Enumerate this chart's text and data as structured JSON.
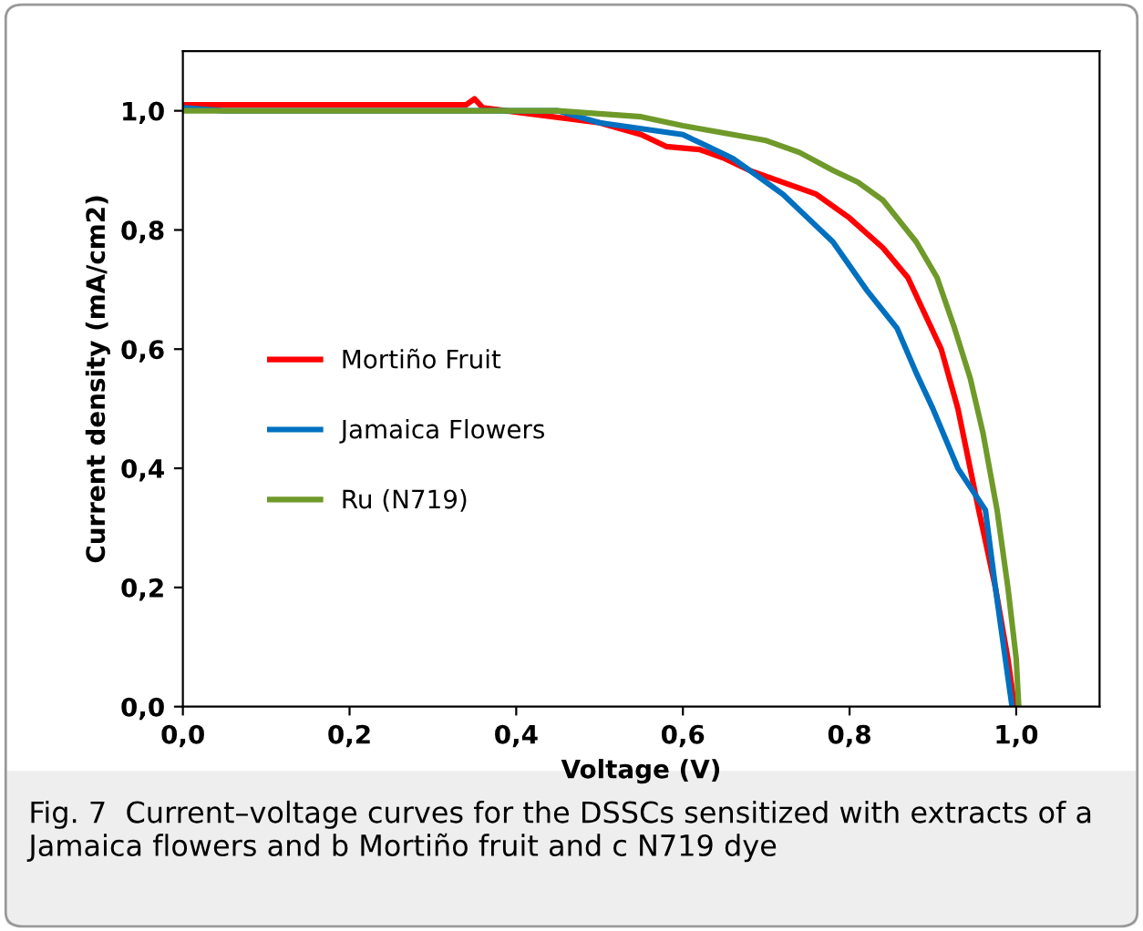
{
  "chart_data": {
    "type": "line",
    "xlabel": "Voltage (V)",
    "ylabel": "Current density (mA/cm2)",
    "xlim": [
      0,
      1.1
    ],
    "ylim": [
      0,
      1.1
    ],
    "xticks": [
      {
        "value": 0,
        "label": "0,0"
      },
      {
        "value": 0.2,
        "label": "0,2"
      },
      {
        "value": 0.4,
        "label": "0,4"
      },
      {
        "value": 0.6,
        "label": "0,6"
      },
      {
        "value": 0.8,
        "label": "0,8"
      },
      {
        "value": 1.0,
        "label": "1,0"
      }
    ],
    "yticks": [
      {
        "value": 0,
        "label": "0,0"
      },
      {
        "value": 0.2,
        "label": "0,2"
      },
      {
        "value": 0.4,
        "label": "0,4"
      },
      {
        "value": 0.6,
        "label": "0,6"
      },
      {
        "value": 0.8,
        "label": "0,8"
      },
      {
        "value": 1.0,
        "label": "1,0"
      }
    ],
    "grid": false,
    "legend": "left",
    "marker": "none",
    "line_style": "solid",
    "series": [
      {
        "name": "Mortiño Fruit",
        "color": "#ff0000",
        "x": [
          0,
          0.1,
          0.2,
          0.3,
          0.34,
          0.35,
          0.36,
          0.5,
          0.55,
          0.58,
          0.62,
          0.65,
          0.68,
          0.72,
          0.76,
          0.8,
          0.84,
          0.87,
          0.89,
          0.91,
          0.93,
          0.955,
          0.975,
          0.99,
          0.998
        ],
        "values": [
          1.01,
          1.01,
          1.01,
          1.01,
          1.01,
          1.02,
          1.005,
          0.98,
          0.96,
          0.94,
          0.935,
          0.92,
          0.9,
          0.88,
          0.86,
          0.82,
          0.77,
          0.72,
          0.66,
          0.6,
          0.5,
          0.33,
          0.2,
          0.08,
          0
        ]
      },
      {
        "name": "Jamaica Flowers",
        "color": "#0070c0",
        "x": [
          0,
          0.05,
          0.1,
          0.2,
          0.3,
          0.4,
          0.45,
          0.5,
          0.55,
          0.6,
          0.63,
          0.66,
          0.69,
          0.72,
          0.75,
          0.78,
          0.82,
          0.857,
          0.88,
          0.9,
          0.93,
          0.963,
          0.975,
          0.985,
          0.995
        ],
        "values": [
          1.005,
          1.0,
          1.0,
          1.0,
          1.0,
          1.0,
          1.0,
          0.98,
          0.97,
          0.96,
          0.94,
          0.92,
          0.89,
          0.86,
          0.82,
          0.78,
          0.7,
          0.635,
          0.56,
          0.5,
          0.4,
          0.33,
          0.2,
          0.1,
          0
        ]
      },
      {
        "name": "Ru (N719)",
        "color": "#6f9a2a",
        "x": [
          0,
          0.1,
          0.2,
          0.3,
          0.4,
          0.45,
          0.5,
          0.55,
          0.6,
          0.62,
          0.66,
          0.7,
          0.74,
          0.78,
          0.81,
          0.84,
          0.88,
          0.905,
          0.926,
          0.945,
          0.96,
          0.977,
          0.99,
          1.0,
          1.003
        ],
        "values": [
          1.0,
          1.0,
          1.0,
          1.0,
          1.0,
          1.0,
          0.995,
          0.99,
          0.975,
          0.97,
          0.96,
          0.95,
          0.93,
          0.9,
          0.88,
          0.85,
          0.78,
          0.72,
          0.635,
          0.55,
          0.46,
          0.33,
          0.2,
          0.08,
          0
        ]
      }
    ],
    "annotations": [
      "Fig. 7  Current–voltage curves for the DSSCs sensitized with extracts of a Jamaica flowers and b Mortiño fruit and c N719 dye"
    ]
  }
}
